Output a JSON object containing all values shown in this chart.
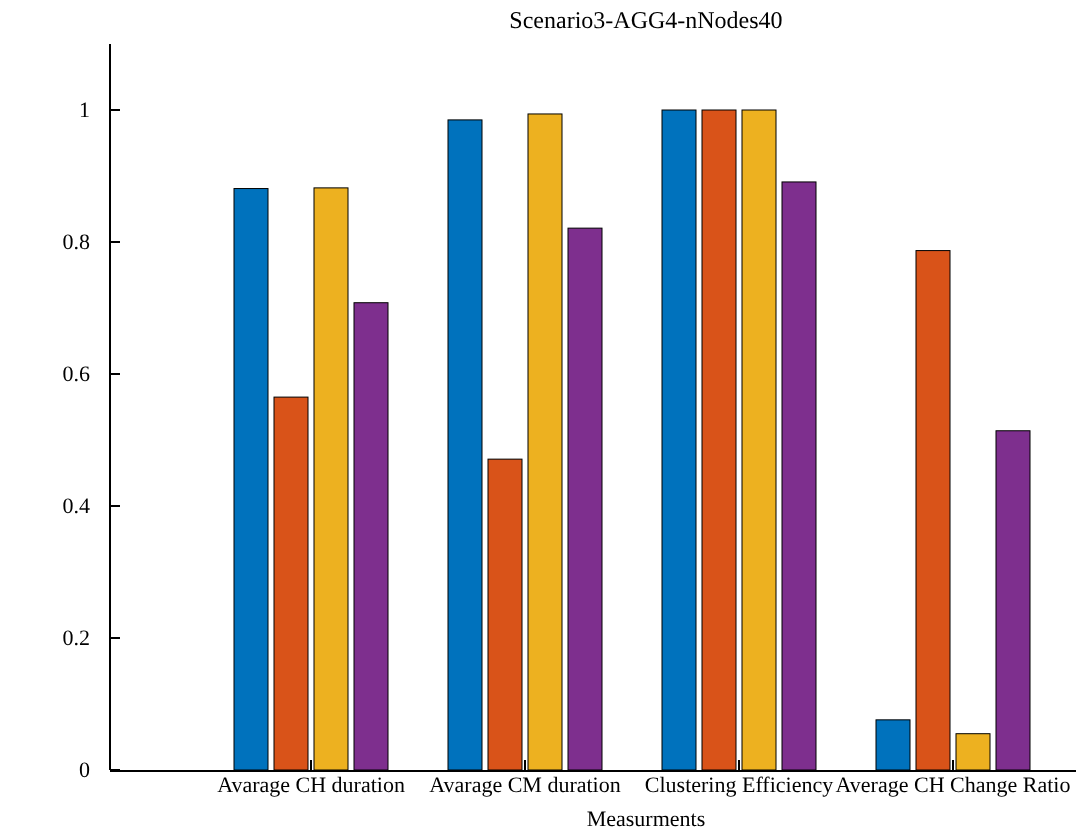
{
  "chart_data": {
    "type": "bar",
    "title": "Scenario3-AGG4-nNodes40",
    "xlabel": "Measurments",
    "categories": [
      "Avarage CH duration",
      "Avarage CM duration",
      "Clustering Efficiency",
      "Average CH Change Ratio"
    ],
    "series": [
      {
        "color": "#0072bd",
        "values": [
          0.881,
          0.985,
          1.0,
          0.076
        ]
      },
      {
        "color": "#d95319",
        "values": [
          0.565,
          0.471,
          1.0,
          0.787
        ]
      },
      {
        "color": "#edb120",
        "values": [
          0.882,
          0.994,
          1.0,
          0.055
        ]
      },
      {
        "color": "#7e2f8e",
        "values": [
          0.708,
          0.821,
          0.891,
          0.514
        ]
      }
    ],
    "ylim": [
      0,
      1.1
    ],
    "yticks": [
      0,
      0.2,
      0.4,
      0.6,
      0.8,
      1
    ],
    "grid": false,
    "legend": false
  }
}
